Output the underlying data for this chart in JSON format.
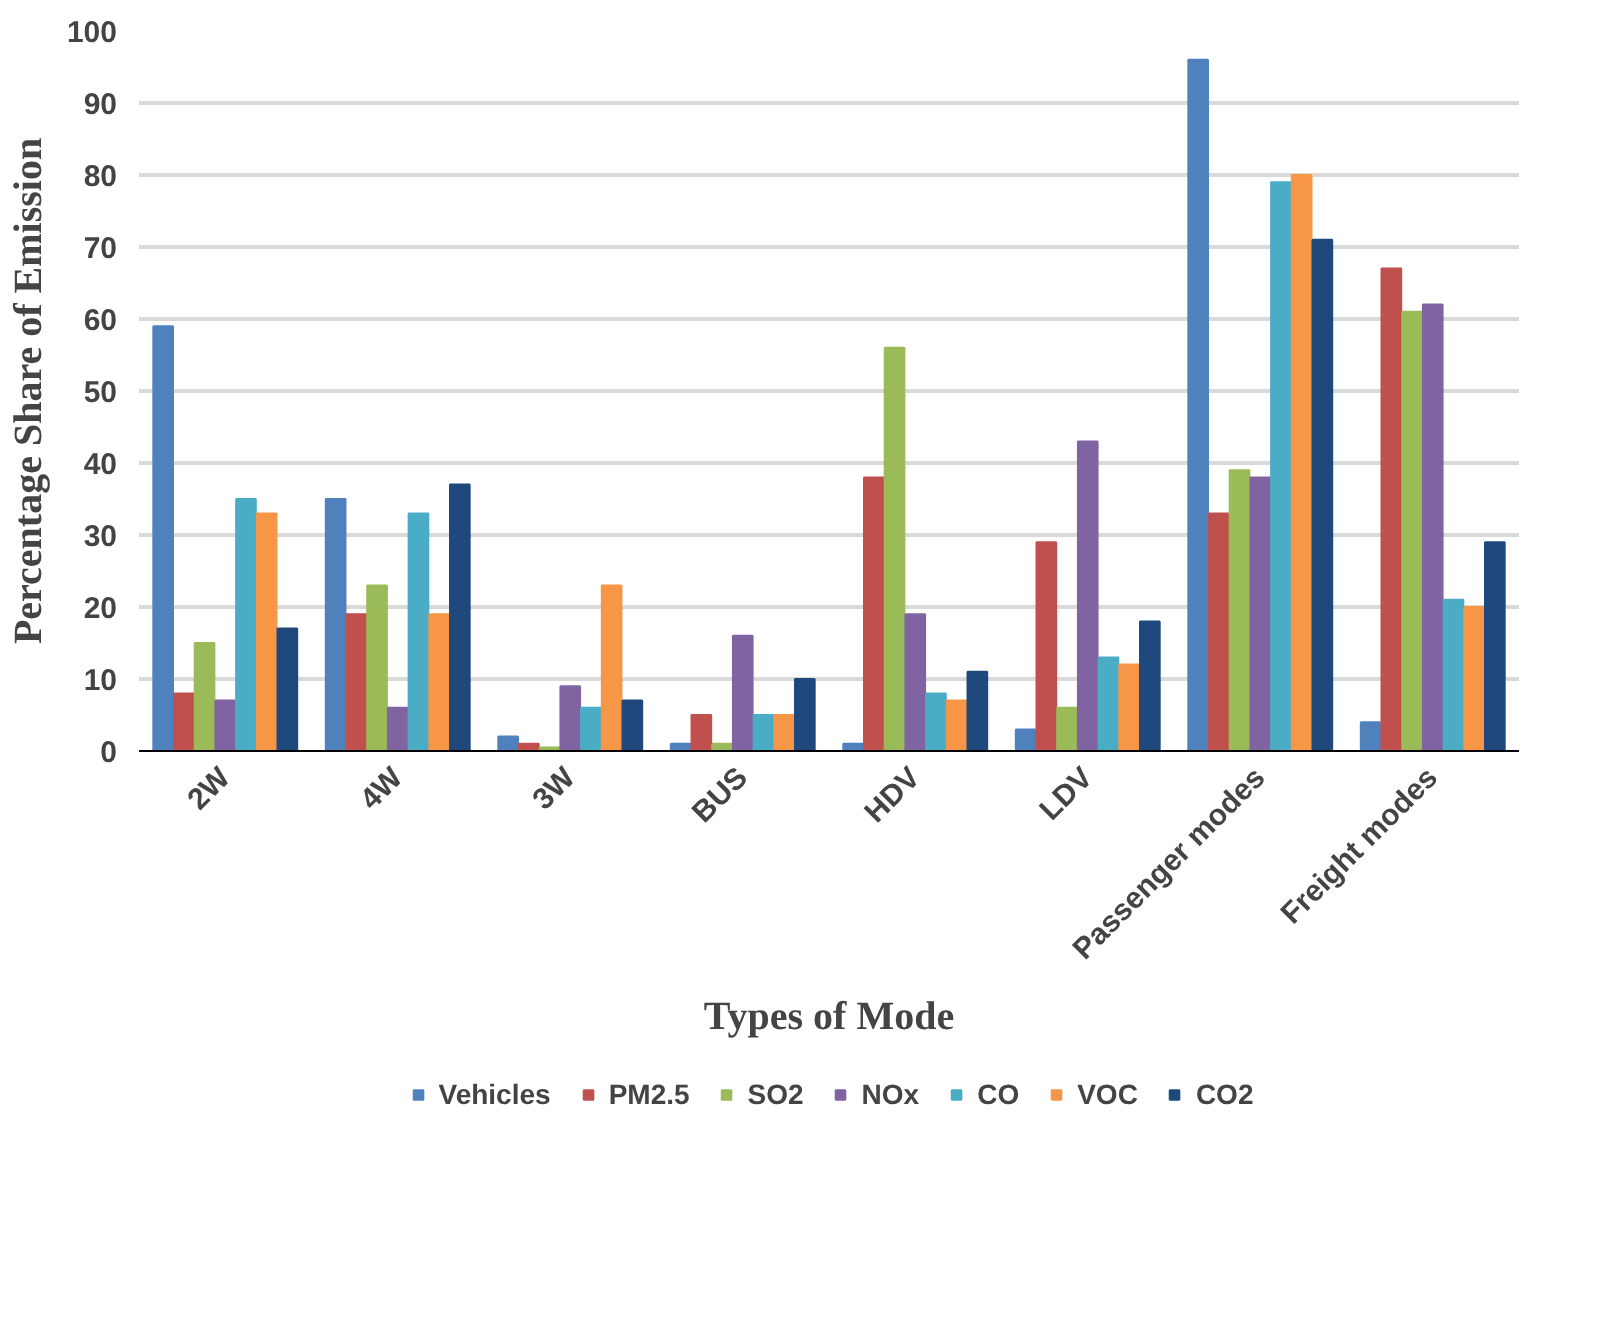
{
  "chart_data": {
    "type": "bar",
    "xlabel": "Types of Mode",
    "ylabel": "Percentage Share of Emission",
    "categories": [
      "2W",
      "4W",
      "3W",
      "BUS",
      "HDV",
      "LDV",
      "Passenger modes",
      "Freight modes"
    ],
    "series": [
      {
        "name": "Vehicles",
        "color": "#4f81bd",
        "values": [
          59,
          35,
          2,
          1,
          1,
          3,
          96,
          4
        ]
      },
      {
        "name": "PM2.5",
        "color": "#c0504d",
        "values": [
          8,
          19,
          1,
          5,
          38,
          29,
          33,
          67
        ]
      },
      {
        "name": "SO2",
        "color": "#9bbb59",
        "values": [
          15,
          23,
          0.5,
          1,
          56,
          6,
          39,
          61
        ]
      },
      {
        "name": "NOx",
        "color": "#8064a2",
        "values": [
          7,
          6,
          9,
          16,
          19,
          43,
          38,
          62
        ]
      },
      {
        "name": "CO",
        "color": "#4bacc6",
        "values": [
          35,
          33,
          6,
          5,
          8,
          13,
          79,
          21
        ]
      },
      {
        "name": "VOC",
        "color": "#f79646",
        "values": [
          33,
          19,
          23,
          5,
          7,
          12,
          80,
          20
        ]
      },
      {
        "name": "CO2",
        "color": "#1f497d",
        "values": [
          17,
          37,
          7,
          10,
          11,
          18,
          71,
          29
        ]
      }
    ],
    "ylim": [
      0,
      100
    ],
    "yticks": [
      0,
      10,
      20,
      30,
      40,
      50,
      60,
      70,
      80,
      90,
      100
    ],
    "grid": "y",
    "legend": "bottom"
  }
}
